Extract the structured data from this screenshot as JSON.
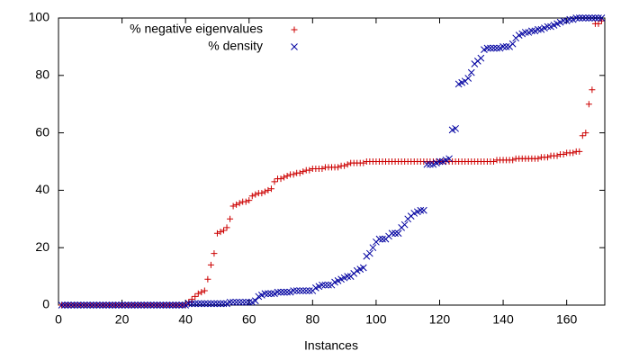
{
  "chart_data": {
    "type": "scatter",
    "xlabel": "Instances",
    "xlim": [
      0,
      172
    ],
    "ylim": [
      0,
      100
    ],
    "xticks": [
      0,
      20,
      40,
      60,
      80,
      100,
      120,
      140,
      160
    ],
    "yticks": [
      0,
      20,
      40,
      60,
      80,
      100
    ],
    "legend": "top-left",
    "x": [
      1,
      2,
      3,
      4,
      5,
      6,
      7,
      8,
      9,
      10,
      11,
      12,
      13,
      14,
      15,
      16,
      17,
      18,
      19,
      20,
      21,
      22,
      23,
      24,
      25,
      26,
      27,
      28,
      29,
      30,
      31,
      32,
      33,
      34,
      35,
      36,
      37,
      38,
      39,
      40,
      41,
      42,
      43,
      44,
      45,
      46,
      47,
      48,
      49,
      50,
      51,
      52,
      53,
      54,
      55,
      56,
      57,
      58,
      59,
      60,
      61,
      62,
      63,
      64,
      65,
      66,
      67,
      68,
      69,
      70,
      71,
      72,
      73,
      74,
      75,
      76,
      77,
      78,
      79,
      80,
      81,
      82,
      83,
      84,
      85,
      86,
      87,
      88,
      89,
      90,
      91,
      92,
      93,
      94,
      95,
      96,
      97,
      98,
      99,
      100,
      101,
      102,
      103,
      104,
      105,
      106,
      107,
      108,
      109,
      110,
      111,
      112,
      113,
      114,
      115,
      116,
      117,
      118,
      119,
      120,
      121,
      122,
      123,
      124,
      125,
      126,
      127,
      128,
      129,
      130,
      131,
      132,
      133,
      134,
      135,
      136,
      137,
      138,
      139,
      140,
      141,
      142,
      143,
      144,
      145,
      146,
      147,
      148,
      149,
      150,
      151,
      152,
      153,
      154,
      155,
      156,
      157,
      158,
      159,
      160,
      161,
      162,
      163,
      164,
      165,
      166,
      167,
      168,
      169,
      170,
      171
    ],
    "series": [
      {
        "name": "% negative eigenvalues",
        "color": "#cc0000",
        "marker": "plus",
        "values": [
          0,
          0,
          0,
          0,
          0,
          0,
          0,
          0,
          0,
          0,
          0,
          0,
          0,
          0,
          0,
          0,
          0,
          0,
          0,
          0,
          0,
          0,
          0,
          0,
          0,
          0,
          0,
          0,
          0,
          0,
          0,
          0,
          0,
          0,
          0,
          0,
          0,
          0,
          0,
          0,
          1,
          2,
          3,
          4,
          4.5,
          5,
          9,
          14,
          18,
          25,
          25.5,
          26,
          27,
          30,
          34.5,
          35,
          35.5,
          36,
          36,
          36.5,
          38,
          38.5,
          39,
          39,
          39.5,
          40,
          40.5,
          43,
          44,
          44,
          44.5,
          45,
          45.5,
          45.5,
          46,
          46,
          46.5,
          47,
          47,
          47.5,
          47.5,
          47.5,
          47.5,
          48,
          48,
          48,
          48,
          48,
          48.5,
          48.5,
          49,
          49.5,
          49.5,
          49.5,
          49.5,
          49.5,
          50,
          50,
          50,
          50,
          50,
          50,
          50,
          50,
          50,
          50,
          50,
          50,
          50,
          50,
          50,
          50,
          50,
          50,
          50,
          50,
          50,
          50,
          50,
          50,
          50,
          50,
          50,
          50,
          50,
          50,
          50,
          50,
          50,
          50,
          50,
          50,
          50,
          50,
          50,
          50,
          50,
          50.5,
          50.5,
          50.5,
          50.5,
          50.5,
          50.5,
          51,
          51,
          51,
          51,
          51,
          51,
          51,
          51,
          51.5,
          51.5,
          51.5,
          52,
          52,
          52,
          52.5,
          52.5,
          53,
          53,
          53,
          53.5,
          53.5,
          59,
          60,
          70,
          75,
          98,
          98,
          99
        ]
      },
      {
        "name": "% density",
        "color": "#0000a0",
        "marker": "cross",
        "values": [
          0,
          0,
          0,
          0,
          0,
          0,
          0,
          0,
          0,
          0,
          0,
          0,
          0,
          0,
          0,
          0,
          0,
          0,
          0,
          0,
          0,
          0,
          0,
          0,
          0,
          0,
          0,
          0,
          0,
          0,
          0,
          0,
          0,
          0,
          0,
          0,
          0,
          0,
          0,
          0,
          0.5,
          0.5,
          0.5,
          0.5,
          0.5,
          0.5,
          0.5,
          0.5,
          0.5,
          0.5,
          0.5,
          0.5,
          0.5,
          1,
          1,
          1,
          1,
          1,
          1,
          1,
          1,
          1.5,
          3,
          3.5,
          4,
          4,
          4,
          4,
          4.5,
          4.5,
          4.5,
          4.5,
          4.5,
          5,
          5,
          5,
          5,
          5,
          5,
          5,
          6,
          6.5,
          7,
          7,
          7,
          7,
          8,
          8.5,
          9,
          9.5,
          10,
          10,
          11,
          12,
          12.5,
          13,
          17,
          18,
          20,
          22,
          23,
          23,
          23,
          24,
          25,
          25,
          25,
          27,
          28,
          30,
          31,
          32,
          32.5,
          33,
          33,
          49,
          49,
          49,
          49.5,
          50,
          50,
          50.5,
          51,
          61,
          61.5,
          77,
          77.5,
          78,
          79,
          81,
          84,
          85,
          86,
          89,
          89.5,
          89.5,
          89.5,
          89.5,
          89.5,
          90,
          90,
          90,
          91,
          93,
          94,
          94.5,
          95,
          95,
          95.5,
          95.5,
          96,
          96,
          96.5,
          97,
          97,
          97.5,
          98,
          98.5,
          99,
          99,
          99.5,
          99.5,
          100,
          100,
          100,
          100,
          100,
          100,
          100,
          100,
          100
        ]
      }
    ]
  }
}
